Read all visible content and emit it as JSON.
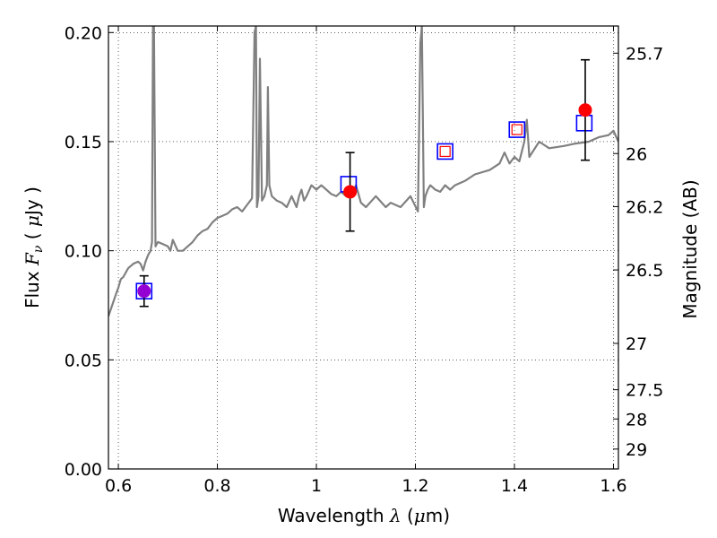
{
  "chart_data": {
    "type": "line",
    "xlabel_parts": [
      "Wavelength  ",
      "λ",
      " (",
      "μ",
      "m)"
    ],
    "ylabel_parts": [
      "Flux  ",
      "F",
      "ν",
      "  ( ",
      "μ",
      "Jy )"
    ],
    "y2label": "Magnitude (AB)",
    "xlim": [
      0.58,
      1.61
    ],
    "ylim": [
      0.0,
      0.203
    ],
    "grid": true,
    "x_ticks": [
      0.6,
      0.8,
      1.0,
      1.2,
      1.4,
      1.6
    ],
    "x_tick_labels": [
      "0.6",
      "0.8",
      "1",
      "1.2",
      "1.4",
      "1.6"
    ],
    "y_ticks": [
      0.0,
      0.05,
      0.1,
      0.15,
      0.2
    ],
    "y_tick_labels": [
      "0.00",
      "0.05",
      "0.10",
      "0.15",
      "0.20"
    ],
    "y2_ticks": [
      {
        "mag": 25.7,
        "label": "25.7"
      },
      {
        "mag": 26.0,
        "label": "26"
      },
      {
        "mag": 26.2,
        "label": "26.2"
      },
      {
        "mag": 26.5,
        "label": "26.5"
      },
      {
        "mag": 27.0,
        "label": "27"
      },
      {
        "mag": 27.5,
        "label": "27.5"
      },
      {
        "mag": 28.0,
        "label": "28"
      },
      {
        "mag": 29.0,
        "label": "29"
      }
    ],
    "series": [
      {
        "kind": "spectrum_line",
        "color": "#808080",
        "x": [
          0.58,
          0.595,
          0.6,
          0.605,
          0.61,
          0.615,
          0.62,
          0.625,
          0.63,
          0.64,
          0.645,
          0.65,
          0.655,
          0.66,
          0.665,
          0.668,
          0.67,
          0.672,
          0.675,
          0.68,
          0.69,
          0.7,
          0.705,
          0.71,
          0.72,
          0.73,
          0.74,
          0.75,
          0.76,
          0.77,
          0.78,
          0.79,
          0.8,
          0.81,
          0.82,
          0.83,
          0.84,
          0.85,
          0.86,
          0.87,
          0.875,
          0.878,
          0.88,
          0.883,
          0.886,
          0.89,
          0.895,
          0.9,
          0.902,
          0.905,
          0.91,
          0.92,
          0.93,
          0.94,
          0.95,
          0.96,
          0.965,
          0.97,
          0.975,
          0.98,
          0.99,
          1.0,
          1.01,
          1.02,
          1.03,
          1.04,
          1.05,
          1.06,
          1.07,
          1.08,
          1.09,
          1.1,
          1.12,
          1.14,
          1.15,
          1.17,
          1.19,
          1.205,
          1.21,
          1.213,
          1.217,
          1.22,
          1.225,
          1.23,
          1.24,
          1.25,
          1.26,
          1.27,
          1.28,
          1.3,
          1.32,
          1.35,
          1.37,
          1.38,
          1.39,
          1.4,
          1.41,
          1.42,
          1.425,
          1.43,
          1.45,
          1.47,
          1.5,
          1.52,
          1.55,
          1.57,
          1.59,
          1.6,
          1.61
        ],
        "y": [
          0.07,
          0.08,
          0.083,
          0.087,
          0.088,
          0.09,
          0.092,
          0.093,
          0.094,
          0.095,
          0.094,
          0.091,
          0.095,
          0.098,
          0.1,
          0.104,
          0.203,
          0.203,
          0.102,
          0.104,
          0.103,
          0.102,
          0.1,
          0.105,
          0.1,
          0.1,
          0.102,
          0.104,
          0.107,
          0.109,
          0.11,
          0.113,
          0.115,
          0.116,
          0.117,
          0.119,
          0.12,
          0.118,
          0.121,
          0.124,
          0.2,
          0.203,
          0.12,
          0.125,
          0.188,
          0.123,
          0.125,
          0.13,
          0.175,
          0.13,
          0.125,
          0.123,
          0.122,
          0.12,
          0.125,
          0.12,
          0.125,
          0.128,
          0.123,
          0.125,
          0.13,
          0.128,
          0.13,
          0.128,
          0.126,
          0.125,
          0.127,
          0.125,
          0.126,
          0.13,
          0.122,
          0.12,
          0.125,
          0.12,
          0.122,
          0.12,
          0.125,
          0.118,
          0.195,
          0.203,
          0.12,
          0.125,
          0.128,
          0.13,
          0.128,
          0.127,
          0.13,
          0.128,
          0.13,
          0.132,
          0.135,
          0.137,
          0.14,
          0.145,
          0.14,
          0.143,
          0.141,
          0.15,
          0.16,
          0.143,
          0.15,
          0.147,
          0.148,
          0.149,
          0.15,
          0.152,
          0.153,
          0.155,
          0.15
        ]
      },
      {
        "kind": "measured_points",
        "color": "#ff0000",
        "x": [
          0.652,
          1.068,
          1.543
        ],
        "y": [
          0.0815,
          0.127,
          0.1645
        ],
        "yerr": [
          0.007,
          0.018,
          0.023
        ]
      },
      {
        "kind": "model_squares_blue",
        "color": "#0000ff",
        "x": [
          0.652,
          1.065,
          1.26,
          1.405,
          1.541
        ],
        "y": [
          0.0815,
          0.1305,
          0.1455,
          0.1555,
          0.1585
        ]
      },
      {
        "kind": "model_squares_red",
        "color": "#ff0000",
        "x": [
          1.26,
          1.405
        ],
        "y": [
          0.1455,
          0.1555
        ]
      }
    ],
    "colors": {
      "spectrum": "#808080",
      "points": "#ff0000",
      "blue_square": "#0000ff",
      "purple_overlap": "#9400d3",
      "errorbar": "#000000",
      "grid": "#000000"
    }
  }
}
